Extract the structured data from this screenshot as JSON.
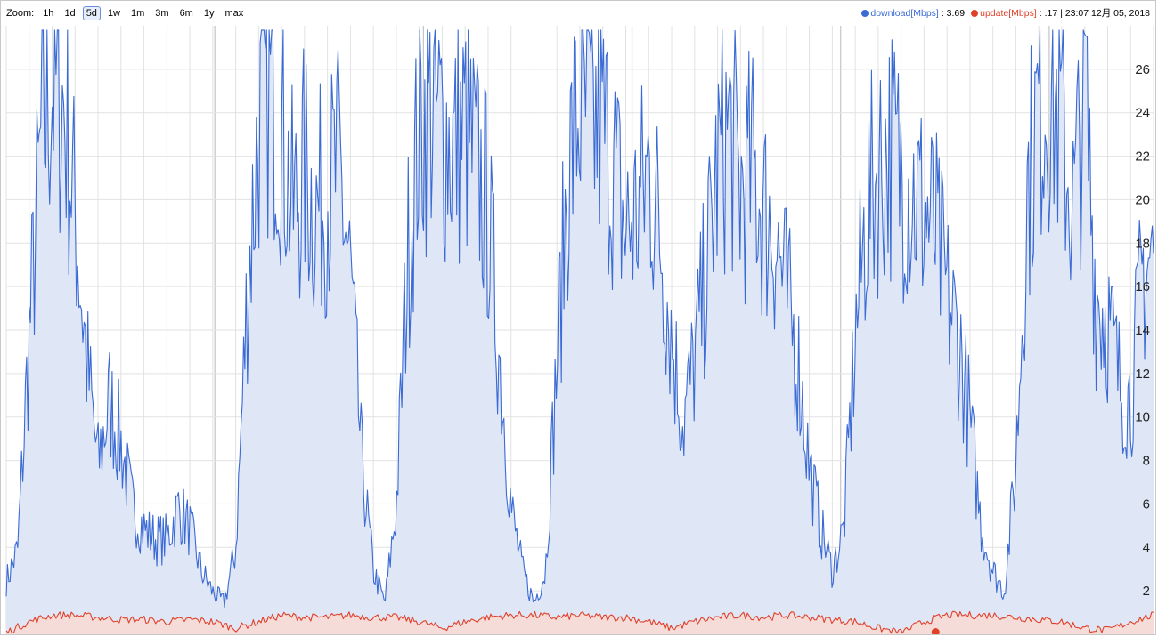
{
  "zoom": {
    "label": "Zoom:",
    "options": [
      "1h",
      "1d",
      "5d",
      "1w",
      "1m",
      "3m",
      "6m",
      "1y",
      "max"
    ],
    "selected": "5d"
  },
  "legend": {
    "download_name": "download[Mbps]",
    "download_value": ": 3.69",
    "update_name": "update[Mbps]",
    "update_value": ": .17",
    "timestamp": "| 23:07 12月 05, 2018"
  },
  "colors": {
    "download": "#3a6ad4",
    "download_fill": "#dfe7f7",
    "update": "#e0412a",
    "update_fill": "#f6dcd8",
    "grid": "#e2e2e2",
    "day_line": "#c4c4c4"
  },
  "chart_data": {
    "type": "area",
    "title": "",
    "xlabel": "",
    "ylabel": "",
    "ylim": [
      0,
      28
    ],
    "yticks": [
      2,
      4,
      6,
      8,
      10,
      12,
      14,
      16,
      18,
      20,
      22,
      24,
      26
    ],
    "xlim": [
      0,
      100
    ],
    "grid": true,
    "legend_position": "top-right",
    "series": [
      {
        "name": "download[Mbps]",
        "x": [
          0,
          1,
          2,
          3,
          4,
          5,
          6,
          7,
          8,
          9,
          10,
          11,
          12,
          13,
          14,
          15,
          16,
          17,
          18,
          19,
          20,
          21,
          22,
          23,
          24,
          25,
          26,
          27,
          28,
          29,
          30,
          31,
          32,
          33,
          34,
          35,
          36,
          37,
          38,
          39,
          40,
          41,
          42,
          43,
          44,
          45,
          46,
          47,
          48,
          49,
          50,
          51,
          52,
          53,
          54,
          55,
          56,
          57,
          58,
          59,
          60,
          61,
          62,
          63,
          64,
          65,
          66,
          67,
          68,
          69,
          70,
          71,
          72,
          73,
          74,
          75,
          76,
          77,
          78,
          79,
          80,
          81,
          82,
          83,
          84,
          85,
          86,
          87,
          88,
          89,
          90,
          91,
          92,
          93,
          94,
          95,
          96,
          97,
          98,
          99,
          100
        ],
        "values": [
          2.5,
          4,
          14,
          23,
          26,
          25,
          20,
          13,
          8,
          11,
          9,
          6,
          5,
          4.5,
          4.5,
          6,
          5,
          3,
          2,
          1.5,
          4,
          16,
          24,
          26,
          24,
          20,
          22,
          20,
          21,
          22,
          17,
          8,
          3,
          1.5,
          6,
          18,
          24,
          25,
          24,
          23,
          24,
          22,
          20,
          13,
          6,
          3,
          1.5,
          3,
          13,
          22,
          25,
          24,
          24,
          22,
          19,
          20,
          22,
          19,
          14,
          10,
          13,
          17,
          22,
          24,
          21,
          22,
          20,
          19,
          16,
          13,
          8,
          5,
          3,
          5,
          14,
          20,
          22,
          23,
          22,
          21,
          20,
          19,
          16,
          14,
          10,
          5,
          3,
          2,
          8,
          21,
          25,
          26,
          24,
          20,
          26,
          16,
          15,
          12,
          11,
          17,
          18
        ]
      },
      {
        "name": "update[Mbps]",
        "x": [
          0,
          2,
          4,
          6,
          8,
          10,
          12,
          14,
          16,
          18,
          20,
          22,
          24,
          26,
          28,
          30,
          32,
          34,
          36,
          38,
          40,
          42,
          44,
          46,
          48,
          50,
          52,
          54,
          56,
          58,
          60,
          62,
          64,
          66,
          68,
          70,
          72,
          74,
          76,
          78,
          80,
          82,
          84,
          86,
          88,
          90,
          92,
          94,
          96,
          98,
          100
        ],
        "values": [
          0.1,
          0.6,
          0.9,
          0.9,
          0.8,
          0.7,
          0.7,
          0.6,
          0.7,
          0.6,
          0.3,
          0.6,
          0.9,
          0.8,
          0.8,
          0.9,
          0.8,
          0.8,
          0.6,
          0.3,
          0.6,
          0.8,
          0.9,
          0.9,
          0.8,
          0.9,
          0.8,
          0.8,
          0.6,
          0.3,
          0.6,
          0.8,
          0.9,
          0.8,
          0.9,
          0.8,
          0.7,
          0.6,
          0.3,
          0.1,
          0.6,
          0.9,
          0.9,
          0.9,
          0.8,
          0.7,
          0.6,
          0.3,
          0.2,
          0.6,
          0.9
        ]
      }
    ]
  }
}
